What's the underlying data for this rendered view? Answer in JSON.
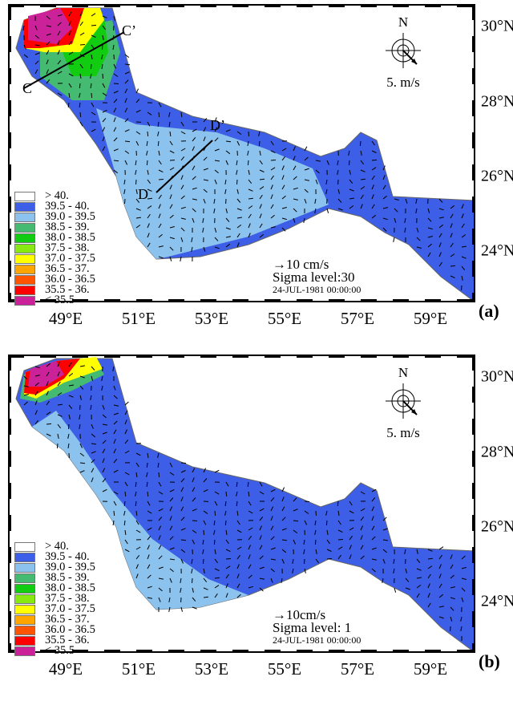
{
  "x_ticks": [
    "49°E",
    "51°E",
    "53°E",
    "55°E",
    "57°E",
    "59°E"
  ],
  "y_ticks": [
    "30°N",
    "28°N",
    "26°N",
    "24°N"
  ],
  "legend": [
    {
      "label": "> 40.",
      "color": "#ffffff"
    },
    {
      "label": "39.5 - 40.",
      "color": "#3d5ee6"
    },
    {
      "label": "39.0 - 39.5",
      "color": "#8cc3ee"
    },
    {
      "label": "38.5 - 39.",
      "color": "#44bb70"
    },
    {
      "label": "38.0 - 38.5",
      "color": "#11cc11"
    },
    {
      "label": "37.5 - 38.",
      "color": "#88e811"
    },
    {
      "label": "37.0 - 37.5",
      "color": "#ffff00"
    },
    {
      "label": "36.5 - 37.",
      "color": "#ffa500"
    },
    {
      "label": "36.0 - 36.5",
      "color": "#ff5500"
    },
    {
      "label": "35.5 - 36.",
      "color": "#ff0000"
    },
    {
      "label": "< 35.5",
      "color": "#cc2299"
    }
  ],
  "compass": {
    "north": "N",
    "scale": "5. m/s"
  },
  "panels": [
    {
      "label": "(a)",
      "vector_scale": "10 cm/s",
      "sigma": "Sigma level:30",
      "datetime": "24-JUL-1981 00:00:00",
      "sections": [
        "C",
        "C’",
        "D",
        "D’"
      ]
    },
    {
      "label": "(b)",
      "vector_scale": "10cm/s",
      "sigma": "Sigma level: 1",
      "datetime": "24-JUL-1981 00:00:00"
    }
  ]
}
